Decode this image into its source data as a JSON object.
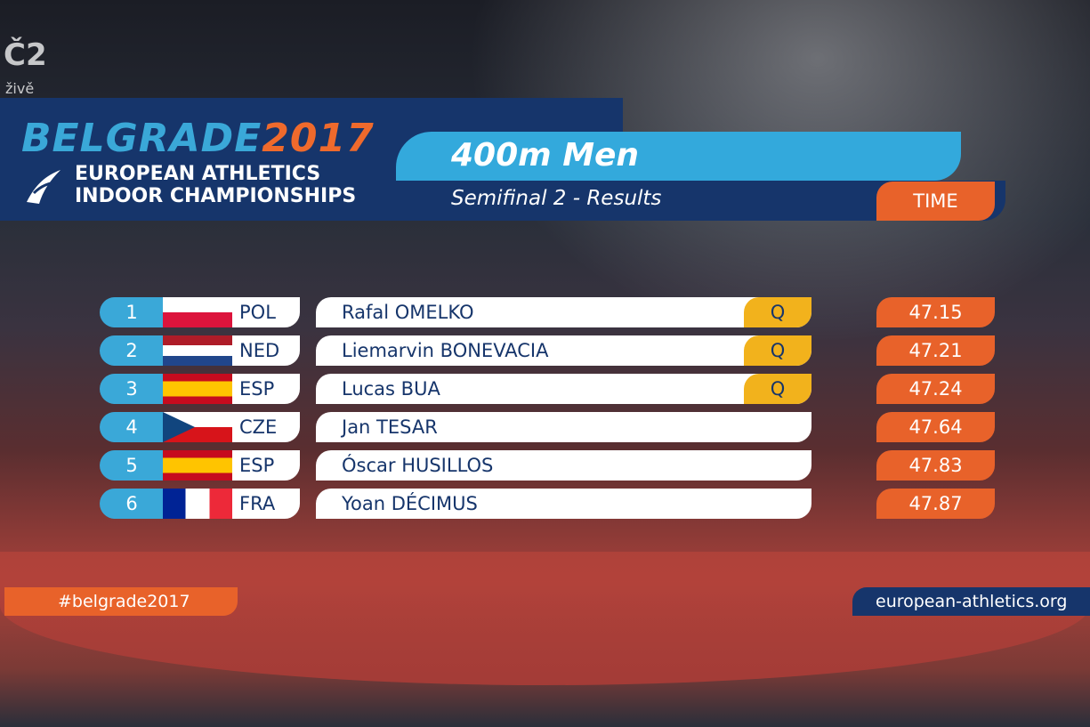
{
  "broadcast": {
    "live": "živě"
  },
  "logo": {
    "city": "BELGRADE",
    "year": "2017",
    "line1": "EUROPEAN ATHLETICS",
    "line2": "INDOOR CHAMPIONSHIPS"
  },
  "event": {
    "title": "400m Men",
    "subtitle": "Semifinal 2 - Results",
    "time_header": "TIME"
  },
  "results": [
    {
      "rank": "1",
      "country": "POL",
      "name": "Rafal OMELKO",
      "qualification": "Q",
      "time": "47.15"
    },
    {
      "rank": "2",
      "country": "NED",
      "name": "Liemarvin BONEVACIA",
      "qualification": "Q",
      "time": "47.21"
    },
    {
      "rank": "3",
      "country": "ESP",
      "name": "Lucas BUA",
      "qualification": "Q",
      "time": "47.24"
    },
    {
      "rank": "4",
      "country": "CZE",
      "name": "Jan TESAR",
      "time": "47.64"
    },
    {
      "rank": "5",
      "country": "ESP",
      "name": "Óscar HUSILLOS",
      "time": "47.83"
    },
    {
      "rank": "6",
      "country": "FRA",
      "name": "Yoan DÉCIMUS",
      "time": "47.87"
    }
  ],
  "footer": {
    "hashtag": "#belgrade2017",
    "website": "european-athletics.org"
  }
}
